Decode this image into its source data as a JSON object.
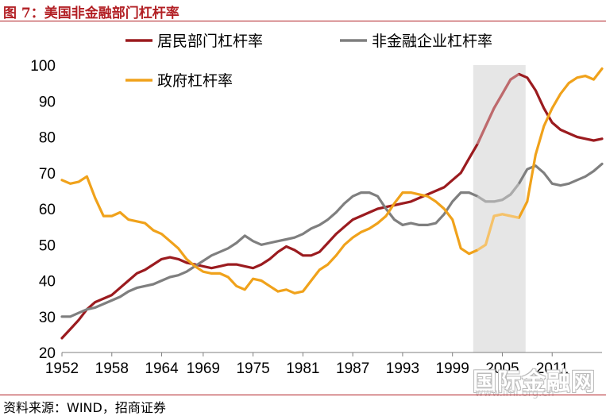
{
  "title": "图 7：美国非金融部门杠杆率",
  "source": "资料来源：WIND，招商证券",
  "watermark": "国际金融网",
  "watermark_url": "www.imi.org.cn",
  "chart_data": {
    "type": "line",
    "title": "",
    "xlabel": "",
    "ylabel": "",
    "xlim": [
      1952,
      2017
    ],
    "ylim": [
      20,
      100
    ],
    "yticks": [
      20,
      30,
      40,
      50,
      60,
      70,
      80,
      90,
      100
    ],
    "xticks": [
      1952,
      1958,
      1964,
      1969,
      1975,
      1981,
      1987,
      1993,
      1999,
      2005,
      2011
    ],
    "xtick_labels": [
      "1952",
      "1958",
      "1964",
      "1969",
      "1975",
      "1981",
      "1987",
      "1993",
      "1999",
      "2005",
      "2011"
    ],
    "grid": false,
    "legend_position": "top",
    "shaded_region": [
      2001.5,
      2007.8
    ],
    "series": [
      {
        "name": "居民部门杠杆率",
        "color": "#9b1b1f",
        "x": [
          1952,
          1953,
          1954,
          1955,
          1956,
          1957,
          1958,
          1959,
          1960,
          1961,
          1962,
          1963,
          1964,
          1965,
          1966,
          1967,
          1968,
          1969,
          1970,
          1971,
          1972,
          1973,
          1974,
          1975,
          1976,
          1977,
          1978,
          1979,
          1980,
          1981,
          1982,
          1983,
          1984,
          1985,
          1986,
          1987,
          1988,
          1989,
          1990,
          1991,
          1992,
          1993,
          1994,
          1995,
          1996,
          1997,
          1998,
          1999,
          2000,
          2001,
          2002,
          2003,
          2004,
          2005,
          2006,
          2007,
          2008,
          2009,
          2010,
          2011,
          2012,
          2013,
          2014,
          2015,
          2016,
          2017
        ],
        "y": [
          24,
          26.5,
          29,
          32,
          34,
          35,
          36,
          38,
          40,
          42,
          43,
          44.5,
          46,
          46.5,
          46,
          45,
          44.5,
          44,
          43.5,
          44,
          44.5,
          44.5,
          44,
          43.5,
          44.5,
          46,
          48,
          49.5,
          48.5,
          47,
          47,
          48,
          50.5,
          53,
          55,
          57,
          58,
          59,
          60,
          60.5,
          61,
          61.5,
          62,
          63,
          64,
          65,
          66,
          68,
          70,
          74,
          78,
          83,
          88,
          92,
          96,
          97.5,
          96.5,
          93,
          88,
          84,
          82,
          81,
          80,
          79.5,
          79,
          79.5
        ]
      },
      {
        "name": "非金融企业杠杆率",
        "color": "#7f7f7f",
        "x": [
          1952,
          1953,
          1954,
          1955,
          1956,
          1957,
          1958,
          1959,
          1960,
          1961,
          1962,
          1963,
          1964,
          1965,
          1966,
          1967,
          1968,
          1969,
          1970,
          1971,
          1972,
          1973,
          1974,
          1975,
          1976,
          1977,
          1978,
          1979,
          1980,
          1981,
          1982,
          1983,
          1984,
          1985,
          1986,
          1987,
          1988,
          1989,
          1990,
          1991,
          1992,
          1993,
          1994,
          1995,
          1996,
          1997,
          1998,
          1999,
          2000,
          2001,
          2002,
          2003,
          2004,
          2005,
          2006,
          2007,
          2008,
          2009,
          2010,
          2011,
          2012,
          2013,
          2014,
          2015,
          2016,
          2017
        ],
        "y": [
          30,
          30,
          31,
          32,
          32.5,
          33.5,
          34.5,
          35.5,
          37,
          38,
          38.5,
          39,
          40,
          41,
          41.5,
          42.5,
          44,
          45.5,
          47,
          48,
          49,
          50.5,
          52.5,
          51,
          50,
          50.5,
          51,
          51.5,
          52,
          53,
          54.5,
          55.5,
          57,
          59,
          61.5,
          63.5,
          64.5,
          64.5,
          63.5,
          60,
          57,
          55.5,
          56,
          55.5,
          55.5,
          56,
          58.5,
          62,
          64.5,
          64.5,
          63.5,
          62,
          62,
          62.5,
          64,
          67,
          71,
          72,
          70,
          67,
          66.5,
          67,
          68,
          69,
          70.5,
          72.5
        ]
      },
      {
        "name": "政府杠杆率",
        "color": "#f0a21b",
        "x": [
          1952,
          1953,
          1954,
          1955,
          1956,
          1957,
          1958,
          1959,
          1960,
          1961,
          1962,
          1963,
          1964,
          1965,
          1966,
          1967,
          1968,
          1969,
          1970,
          1971,
          1972,
          1973,
          1974,
          1975,
          1976,
          1977,
          1978,
          1979,
          1980,
          1981,
          1982,
          1983,
          1984,
          1985,
          1986,
          1987,
          1988,
          1989,
          1990,
          1991,
          1992,
          1993,
          1994,
          1995,
          1996,
          1997,
          1998,
          1999,
          2000,
          2001,
          2002,
          2003,
          2004,
          2005,
          2006,
          2007,
          2008,
          2009,
          2010,
          2011,
          2012,
          2013,
          2014,
          2015,
          2016,
          2017
        ],
        "y": [
          68,
          67,
          67.5,
          69,
          63,
          58,
          58,
          59,
          57,
          56.5,
          56,
          54,
          53,
          51,
          49,
          46,
          44,
          42.5,
          42,
          42,
          41,
          38.5,
          37.5,
          40.5,
          40,
          38.5,
          37,
          37.5,
          36.5,
          37,
          40,
          43,
          44.5,
          47,
          50,
          52,
          53.5,
          54.5,
          56,
          58,
          61.5,
          64.5,
          64.5,
          64,
          63.5,
          62,
          60,
          57,
          49,
          47.5,
          48.5,
          50,
          58,
          58.5,
          58,
          57.5,
          62,
          75,
          83,
          88,
          92,
          95,
          96.5,
          97,
          96,
          99
        ]
      }
    ]
  }
}
